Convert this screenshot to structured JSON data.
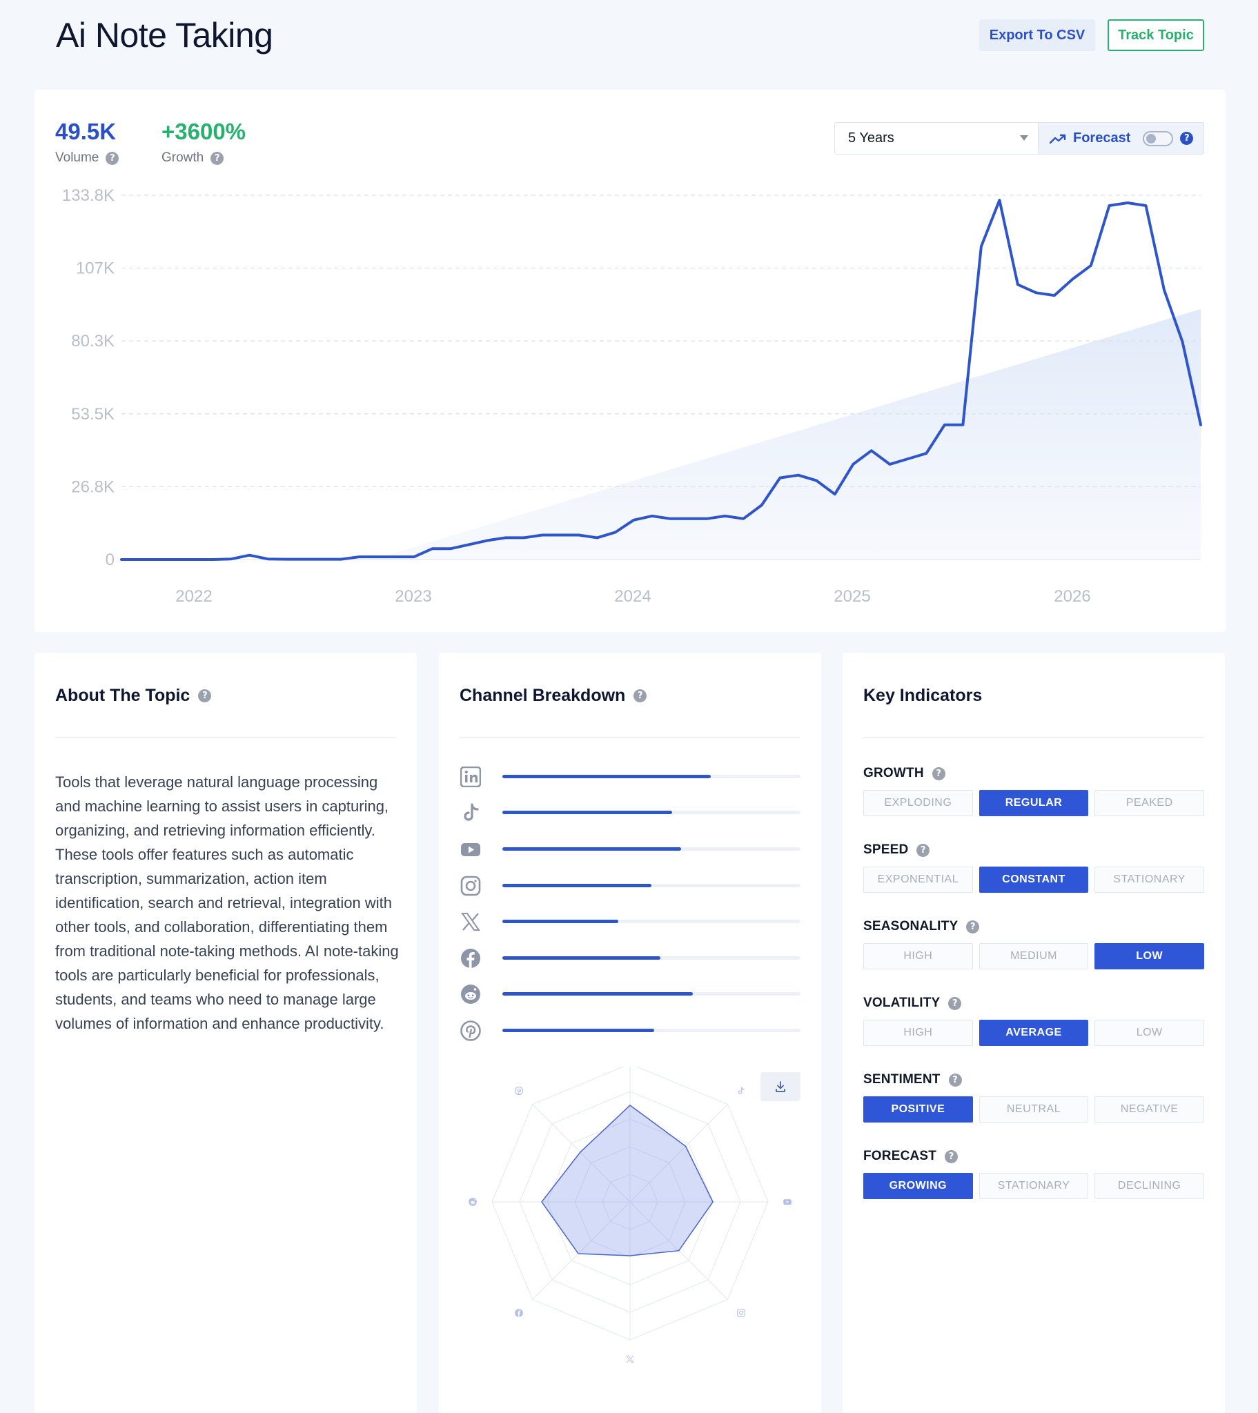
{
  "header": {
    "title": "Ai Note Taking",
    "export_label": "Export To CSV",
    "track_label": "Track Topic"
  },
  "stats": {
    "volume": {
      "value": "49.5K",
      "label": "Volume",
      "color": "#2b4fc7"
    },
    "growth": {
      "value": "+3600%",
      "label": "Growth",
      "color": "#27b06e"
    }
  },
  "controls": {
    "range": "5 Years",
    "forecast_label": "Forecast",
    "forecast_on": false
  },
  "chart_data": {
    "type": "line",
    "y_ticks": [
      "133.8K",
      "107K",
      "80.3K",
      "53.5K",
      "26.8K",
      "0"
    ],
    "x_ticks": [
      "2022",
      "2023",
      "2024",
      "2025",
      "2026"
    ],
    "ylim": [
      0,
      133800
    ],
    "grid": true,
    "series": [
      {
        "values": [
          0,
          0,
          0,
          0,
          0,
          0,
          200,
          1600,
          200,
          100,
          100,
          100,
          100,
          1000,
          1000,
          1000,
          1000,
          4000,
          4000,
          5500,
          7000,
          8000,
          8000,
          9000,
          9000,
          9000,
          8000,
          10000,
          14500,
          16000,
          15000,
          15000,
          15000,
          16000,
          15000,
          20000,
          30000,
          31000,
          29000,
          24000,
          35000,
          40000,
          35000,
          37000,
          39000,
          49500,
          49500,
          115000,
          132000,
          101000,
          98000,
          97000,
          103000,
          108000,
          130000,
          131000,
          130000,
          99000,
          80000,
          49500
        ]
      }
    ],
    "trend": {
      "start": 0,
      "end": 92000
    }
  },
  "about": {
    "title": "About The Topic",
    "text": "Tools that leverage natural language processing and machine learning to assist users in capturing, organizing, and retrieving information efficiently. These tools offer features such as automatic transcription, summarization, action item identification, search and retrieval, integration with other tools, and collaboration, differentiating them from traditional note-taking methods. AI note-taking tools are particularly beneficial for professionals, students, and teams who need to manage large volumes of information and enhance productivity."
  },
  "channels": {
    "title": "Channel Breakdown",
    "items": [
      {
        "icon": "linkedin-icon",
        "value": 0.7
      },
      {
        "icon": "tiktok-icon",
        "value": 0.57
      },
      {
        "icon": "youtube-icon",
        "value": 0.6
      },
      {
        "icon": "instagram-icon",
        "value": 0.5
      },
      {
        "icon": "x-icon",
        "value": 0.39
      },
      {
        "icon": "facebook-icon",
        "value": 0.53
      },
      {
        "icon": "reddit-icon",
        "value": 0.64
      },
      {
        "icon": "pinterest-icon",
        "value": 0.51
      }
    ],
    "radar": [
      0.7,
      0.57,
      0.6,
      0.5,
      0.39,
      0.53,
      0.64,
      0.51
    ]
  },
  "indicators": {
    "title": "Key Indicators",
    "groups": [
      {
        "label": "GROWTH",
        "options": [
          "EXPLODING",
          "REGULAR",
          "PEAKED"
        ],
        "active": 1
      },
      {
        "label": "SPEED",
        "options": [
          "EXPONENTIAL",
          "CONSTANT",
          "STATIONARY"
        ],
        "active": 1
      },
      {
        "label": "SEASONALITY",
        "options": [
          "HIGH",
          "MEDIUM",
          "LOW"
        ],
        "active": 2
      },
      {
        "label": "VOLATILITY",
        "options": [
          "HIGH",
          "AVERAGE",
          "LOW"
        ],
        "active": 1
      },
      {
        "label": "SENTIMENT",
        "options": [
          "POSITIVE",
          "NEUTRAL",
          "NEGATIVE"
        ],
        "active": 0
      },
      {
        "label": "FORECAST",
        "options": [
          "GROWING",
          "STATIONARY",
          "DECLINING"
        ],
        "active": 0
      }
    ]
  }
}
